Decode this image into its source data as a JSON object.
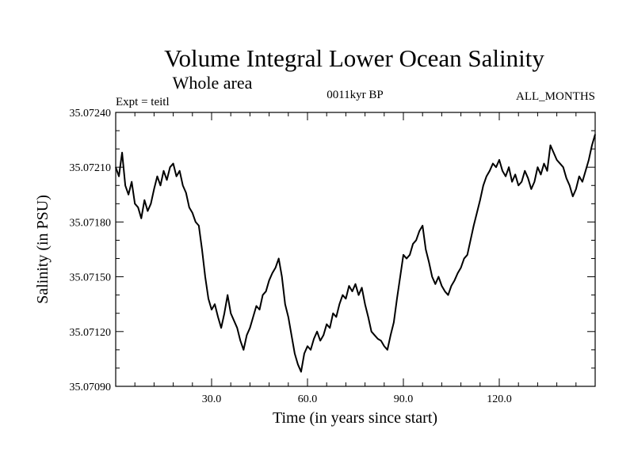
{
  "chart_data": {
    "type": "line",
    "title": "Volume Integral Lower Ocean Salinity",
    "subtitle": "Whole area",
    "left_label": "Expt = teitl",
    "center_label": "0011kyr BP",
    "right_label": "ALL_MONTHS",
    "xlabel": "Time (in years since start)",
    "ylabel": "Salinity (in PSU)",
    "xlim": [
      0,
      150
    ],
    "ylim": [
      35.0709,
      35.0724
    ],
    "xticks": [
      30,
      60,
      90,
      120
    ],
    "xtick_labels": [
      "30.0",
      "60.0",
      "90.0",
      "120.0"
    ],
    "yticks": [
      35.0709,
      35.0712,
      35.0715,
      35.0718,
      35.0721,
      35.0724
    ],
    "ytick_labels": [
      "35.07090",
      "35.07120",
      "35.07150",
      "35.07180",
      "35.07210",
      "35.07240"
    ],
    "line_color": "#000000",
    "series": [
      {
        "name": "salinity",
        "x": [
          0,
          1,
          2,
          3,
          4,
          5,
          6,
          7,
          8,
          9,
          10,
          11,
          12,
          13,
          14,
          15,
          16,
          17,
          18,
          19,
          20,
          21,
          22,
          23,
          24,
          25,
          26,
          27,
          28,
          29,
          30,
          31,
          32,
          33,
          34,
          35,
          36,
          37,
          38,
          39,
          40,
          41,
          42,
          43,
          44,
          45,
          46,
          47,
          48,
          49,
          50,
          51,
          52,
          53,
          54,
          55,
          56,
          57,
          58,
          59,
          60,
          61,
          62,
          63,
          64,
          65,
          66,
          67,
          68,
          69,
          70,
          71,
          72,
          73,
          74,
          75,
          76,
          77,
          78,
          79,
          80,
          81,
          82,
          83,
          84,
          85,
          86,
          87,
          88,
          89,
          90,
          91,
          92,
          93,
          94,
          95,
          96,
          97,
          98,
          99,
          100,
          101,
          102,
          103,
          104,
          105,
          106,
          107,
          108,
          109,
          110,
          111,
          112,
          113,
          114,
          115,
          116,
          117,
          118,
          119,
          120,
          121,
          122,
          123,
          124,
          125,
          126,
          127,
          128,
          129,
          130,
          131,
          132,
          133,
          134,
          135,
          136,
          137,
          138,
          139,
          140,
          141,
          142,
          143,
          144,
          145,
          146,
          147,
          148,
          149,
          150
        ],
        "values": [
          35.0721,
          35.07205,
          35.07218,
          35.072,
          35.07195,
          35.07202,
          35.0719,
          35.07188,
          35.07182,
          35.07192,
          35.07186,
          35.0719,
          35.07198,
          35.07205,
          35.072,
          35.07208,
          35.07203,
          35.0721,
          35.07212,
          35.07205,
          35.07208,
          35.072,
          35.07196,
          35.07188,
          35.07185,
          35.0718,
          35.07178,
          35.07165,
          35.0715,
          35.07138,
          35.07132,
          35.07135,
          35.07128,
          35.07122,
          35.0713,
          35.0714,
          35.0713,
          35.07126,
          35.07122,
          35.07115,
          35.0711,
          35.07118,
          35.07122,
          35.07128,
          35.07134,
          35.07132,
          35.0714,
          35.07142,
          35.07148,
          35.07152,
          35.07155,
          35.0716,
          35.0715,
          35.07135,
          35.07128,
          35.07118,
          35.07108,
          35.07102,
          35.07098,
          35.07108,
          35.07112,
          35.0711,
          35.07116,
          35.0712,
          35.07115,
          35.07118,
          35.07124,
          35.07122,
          35.0713,
          35.07128,
          35.07135,
          35.0714,
          35.07138,
          35.07145,
          35.07142,
          35.07146,
          35.0714,
          35.07144,
          35.07135,
          35.07128,
          35.0712,
          35.07118,
          35.07116,
          35.07115,
          35.07112,
          35.0711,
          35.07118,
          35.07125,
          35.07138,
          35.0715,
          35.07162,
          35.0716,
          35.07162,
          35.07168,
          35.0717,
          35.07175,
          35.07178,
          35.07165,
          35.07158,
          35.0715,
          35.07146,
          35.0715,
          35.07145,
          35.07142,
          35.0714,
          35.07145,
          35.07148,
          35.07152,
          35.07155,
          35.0716,
          35.07162,
          35.0717,
          35.07178,
          35.07185,
          35.07192,
          35.072,
          35.07205,
          35.07208,
          35.07212,
          35.0721,
          35.07214,
          35.07208,
          35.07205,
          35.0721,
          35.07202,
          35.07206,
          35.072,
          35.07202,
          35.07208,
          35.07204,
          35.07198,
          35.07202,
          35.0721,
          35.07206,
          35.07212,
          35.07208,
          35.07222,
          35.07218,
          35.07214,
          35.07212,
          35.0721,
          35.07204,
          35.072,
          35.07194,
          35.07198,
          35.07205,
          35.07202,
          35.07208,
          35.07214,
          35.07222,
          35.07228
        ]
      }
    ]
  }
}
